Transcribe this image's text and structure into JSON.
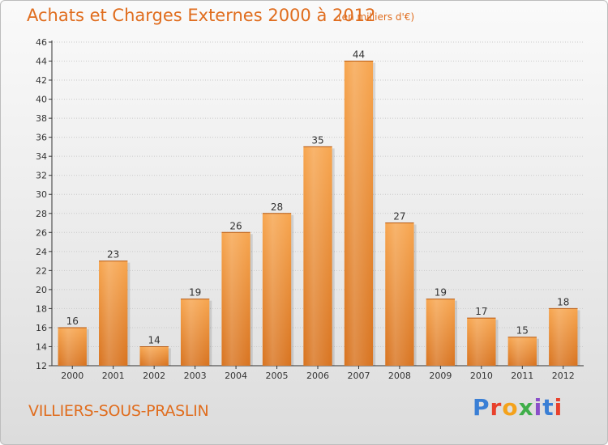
{
  "header": {
    "title": "Achats et Charges Externes 2000 à 2012",
    "unit": "(en milliers d'€)"
  },
  "footer": {
    "place": "VILLIERS-SOUS-PRASLIN",
    "brand": "Proxiti",
    "brand_colors": [
      "#3a7fd5",
      "#e8412c",
      "#f4a21b",
      "#3fae49",
      "#8a4fc9",
      "#3a7fd5",
      "#e8412c"
    ]
  },
  "colors": {
    "accent": "#e06d1e",
    "bar_top": "#f7a54e",
    "bar_bottom": "#d8731f",
    "grid": "#c9c9c9"
  },
  "chart_data": {
    "type": "bar",
    "title": "Achats et Charges Externes 2000 à 2012",
    "subtitle": "(en milliers d'€)",
    "xlabel": "",
    "ylabel": "",
    "categories": [
      "2000",
      "2001",
      "2002",
      "2003",
      "2004",
      "2005",
      "2006",
      "2007",
      "2008",
      "2009",
      "2010",
      "2011",
      "2012"
    ],
    "values": [
      16,
      23,
      14,
      19,
      26,
      28,
      35,
      44,
      27,
      19,
      17,
      15,
      18
    ],
    "ylim": [
      12,
      46
    ],
    "yticks": [
      12,
      14,
      16,
      18,
      20,
      22,
      24,
      26,
      28,
      30,
      32,
      34,
      36,
      38,
      40,
      42,
      44,
      46
    ],
    "grid": true,
    "data_labels": true
  }
}
